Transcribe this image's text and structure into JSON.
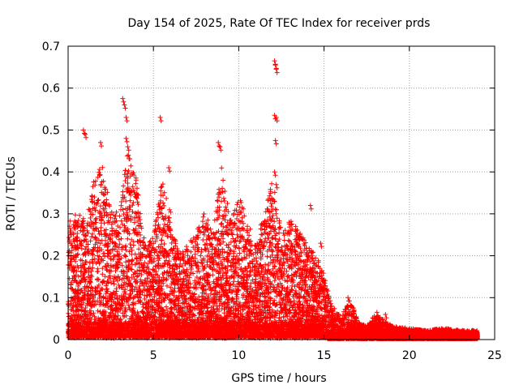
{
  "chart_data": {
    "type": "scatter",
    "title": "Day 154 of 2025, Rate Of TEC Index for receiver prds",
    "xlabel": "GPS time / hours",
    "ylabel": "ROTI / TECUs",
    "xlim": [
      0,
      25
    ],
    "ylim": [
      0,
      0.7
    ],
    "x_ticks": [
      0,
      5,
      10,
      15,
      20,
      25
    ],
    "y_ticks": [
      0,
      0.1,
      0.2,
      0.3,
      0.4,
      0.5,
      0.6,
      0.7
    ],
    "x_tick_labels": [
      "0",
      "5",
      "10",
      "15",
      "20",
      "25"
    ],
    "y_tick_labels": [
      "0",
      "0.1",
      "0.2",
      "0.3",
      "0.4",
      "0.5",
      "0.6",
      "0.7"
    ],
    "grid": true,
    "marker": "+",
    "marker_color": "#ff0000",
    "envelope": {
      "description_hours": [
        0,
        0.5,
        1,
        1.5,
        2,
        2.5,
        3,
        3.5,
        4,
        4.5,
        5,
        5.5,
        6,
        6.5,
        7,
        7.5,
        8,
        8.5,
        9,
        9.5,
        10,
        10.5,
        11,
        11.5,
        12,
        12.5,
        13,
        13.5,
        14,
        14.5,
        15,
        15.5,
        16,
        16.5,
        17,
        17.5,
        18,
        19,
        20,
        21,
        22,
        23,
        24
      ],
      "typical_max": [
        0.28,
        0.3,
        0.28,
        0.38,
        0.42,
        0.3,
        0.3,
        0.45,
        0.38,
        0.22,
        0.24,
        0.38,
        0.3,
        0.2,
        0.22,
        0.25,
        0.3,
        0.25,
        0.42,
        0.28,
        0.34,
        0.28,
        0.22,
        0.3,
        0.38,
        0.25,
        0.28,
        0.26,
        0.22,
        0.2,
        0.15,
        0.08,
        0.05,
        0.1,
        0.04,
        0.03,
        0.06,
        0.03,
        0.025,
        0.02,
        0.025,
        0.02,
        0.02
      ]
    },
    "notable_points": [
      {
        "x": 0.9,
        "y": 0.5
      },
      {
        "x": 1.0,
        "y": 0.49
      },
      {
        "x": 1.9,
        "y": 0.47
      },
      {
        "x": 3.2,
        "y": 0.575
      },
      {
        "x": 3.3,
        "y": 0.56
      },
      {
        "x": 3.4,
        "y": 0.53
      },
      {
        "x": 3.4,
        "y": 0.48
      },
      {
        "x": 3.5,
        "y": 0.46
      },
      {
        "x": 5.4,
        "y": 0.53
      },
      {
        "x": 5.9,
        "y": 0.41
      },
      {
        "x": 8.8,
        "y": 0.47
      },
      {
        "x": 8.9,
        "y": 0.46
      },
      {
        "x": 12.1,
        "y": 0.665
      },
      {
        "x": 12.15,
        "y": 0.655
      },
      {
        "x": 12.2,
        "y": 0.645
      },
      {
        "x": 12.1,
        "y": 0.535
      },
      {
        "x": 12.2,
        "y": 0.53
      },
      {
        "x": 12.15,
        "y": 0.475
      },
      {
        "x": 12.1,
        "y": 0.4
      },
      {
        "x": 12.2,
        "y": 0.37
      },
      {
        "x": 13.5,
        "y": 0.245
      },
      {
        "x": 13.6,
        "y": 0.25
      },
      {
        "x": 14.2,
        "y": 0.32
      },
      {
        "x": 14.8,
        "y": 0.23
      },
      {
        "x": 16.4,
        "y": 0.1
      },
      {
        "x": 18.1,
        "y": 0.065
      },
      {
        "x": 18.6,
        "y": 0.06
      }
    ]
  }
}
